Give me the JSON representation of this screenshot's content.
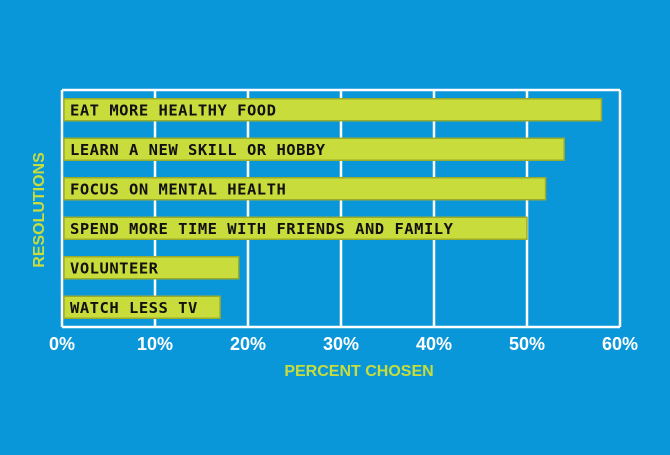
{
  "chart_data": {
    "type": "bar",
    "orientation": "horizontal",
    "categories": [
      "EAT MORE HEALTHY FOOD",
      "LEARN A NEW SKILL OR HOBBY",
      "FOCUS ON MENTAL HEALTH",
      "SPEND MORE TIME WITH FRIENDS AND FAMILY",
      "VOLUNTEER",
      "WATCH LESS TV"
    ],
    "values": [
      58,
      54,
      52,
      50,
      19,
      17
    ],
    "xlim": [
      0,
      60
    ],
    "xticks": [
      0,
      10,
      20,
      30,
      40,
      50,
      60
    ],
    "xtick_labels": [
      "0%",
      "10%",
      "20%",
      "30%",
      "40%",
      "50%",
      "60%"
    ],
    "xlabel": "PERCENT CHOSEN",
    "ylabel": "RESOLUTIONS",
    "grid": true,
    "colors": {
      "background": "#0a97d9",
      "bar": "#c8dc3c",
      "bar_edge": "#9aab2a",
      "grid": "#ffffff",
      "axis_title": "#c8dc3c",
      "tick_text": "#ffffff",
      "label_text": "#111111"
    }
  }
}
